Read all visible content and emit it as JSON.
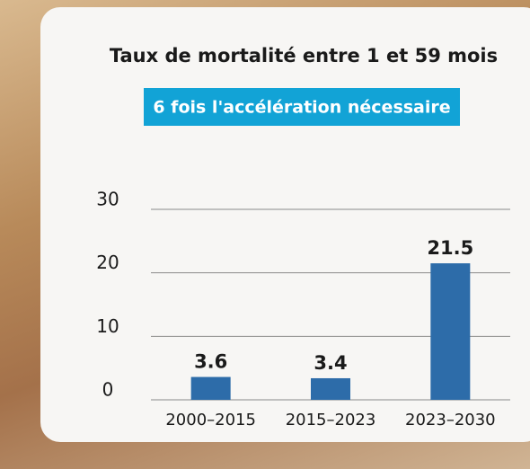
{
  "chart_data": {
    "type": "bar",
    "title": "Taux de mortalité entre 1 et 59 mois",
    "subtitle": "6 fois l'accélération nécessaire",
    "categories": [
      "2000–2015",
      "2015–2023",
      "2023–2030"
    ],
    "values": [
      3.6,
      3.4,
      21.5
    ],
    "color": "#2d6ca9",
    "ylim": [
      0,
      30
    ],
    "yticks": [
      0,
      10,
      20,
      30
    ],
    "grid": true
  }
}
